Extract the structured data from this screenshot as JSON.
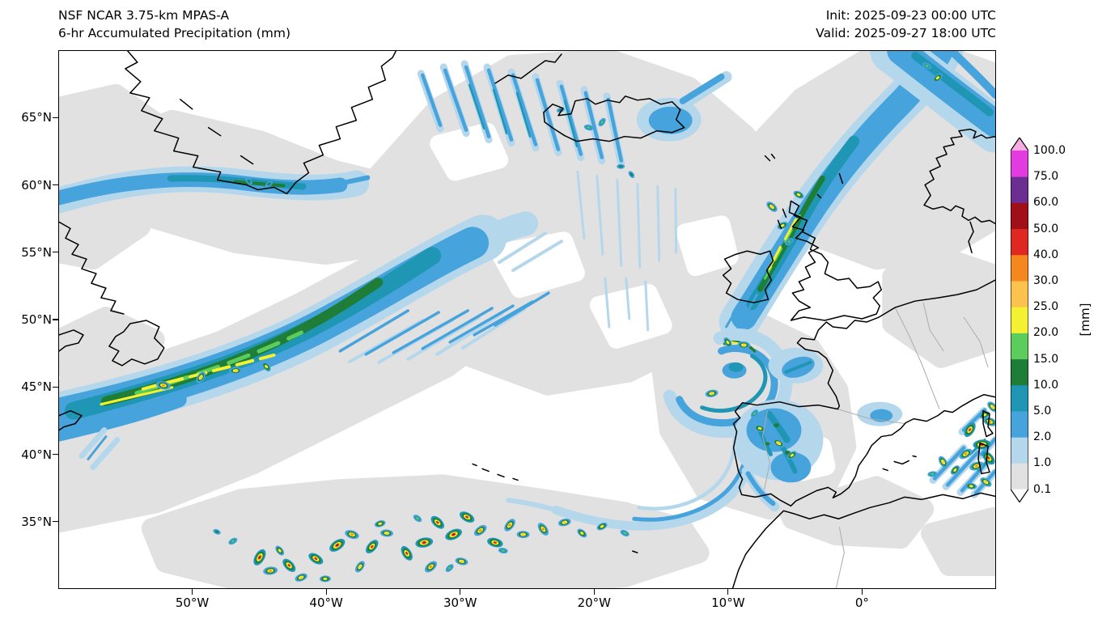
{
  "header": {
    "title_line1": "NSF NCAR 3.75-km MPAS-A",
    "title_line2": "6-hr Accumulated Precipitation (mm)",
    "init_label": "Init: 2025-09-23 00:00 UTC",
    "valid_label": "Valid: 2025-09-27 18:00 UTC"
  },
  "map": {
    "extent": {
      "lon_min": -60,
      "lon_max": 10,
      "lat_min": 30,
      "lat_max": 70
    },
    "y_tick_values": [
      65,
      60,
      55,
      50,
      45,
      40,
      35
    ],
    "y_tick_labels": [
      "65°N",
      "60°N",
      "55°N",
      "50°N",
      "45°N",
      "40°N",
      "35°N"
    ],
    "x_tick_values": [
      -50,
      -40,
      -30,
      -20,
      -10,
      0
    ],
    "x_tick_labels": [
      "50°W",
      "40°W",
      "30°W",
      "20°W",
      "10°W",
      "0°"
    ]
  },
  "colorbar": {
    "unit_label": "[mm]",
    "tick_labels": [
      "100.0",
      "75.0",
      "60.0",
      "50.0",
      "40.0",
      "30.0",
      "25.0",
      "20.0",
      "15.0",
      "10.0",
      "5.0",
      "2.0",
      "1.0",
      "0.1"
    ],
    "under_color": "#ffffff",
    "palette_mm": {
      "0.1": "#e1e1e1",
      "1.0": "#b5d7ec",
      "2.0": "#47a3dc",
      "5.0": "#1f96b4",
      "10.0": "#1e7e38",
      "15.0": "#5ccc5c",
      "20.0": "#f4f132",
      "25.0": "#fbc34d",
      "30.0": "#f5871f",
      "40.0": "#e02823",
      "50.0": "#a01016",
      "60.0": "#6b2e91",
      "75.0": "#e23bdf",
      "100.0": "#f7abe1"
    }
  },
  "precip_cells": [
    [
      -45.0,
      32.3,
      50
    ],
    [
      -44.2,
      31.3,
      30
    ],
    [
      -42.8,
      31.7,
      40
    ],
    [
      -41.9,
      30.8,
      25
    ],
    [
      -40.8,
      32.2,
      40
    ],
    [
      -39.2,
      33.2,
      50
    ],
    [
      -38.1,
      34.0,
      30
    ],
    [
      -36.6,
      33.1,
      40
    ],
    [
      -35.5,
      34.1,
      25
    ],
    [
      -34.0,
      32.6,
      40
    ],
    [
      -32.7,
      33.4,
      50
    ],
    [
      -31.7,
      34.9,
      40
    ],
    [
      -30.5,
      34.0,
      50
    ],
    [
      -29.5,
      35.3,
      40
    ],
    [
      -28.5,
      34.3,
      30
    ],
    [
      -27.4,
      33.4,
      40
    ],
    [
      -26.3,
      34.7,
      30
    ],
    [
      -25.3,
      34.0,
      25
    ],
    [
      -23.8,
      34.4,
      30
    ],
    [
      -22.2,
      34.9,
      25
    ],
    [
      -20.9,
      34.1,
      20
    ],
    [
      -19.4,
      34.6,
      20
    ],
    [
      -17.7,
      34.1,
      15
    ],
    [
      -32.2,
      31.6,
      30
    ],
    [
      -29.9,
      32.0,
      25
    ],
    [
      -37.5,
      31.6,
      25
    ],
    [
      -40.1,
      30.7,
      20
    ],
    [
      -43.5,
      32.8,
      20
    ],
    [
      -36.0,
      34.8,
      20
    ],
    [
      -33.2,
      35.2,
      15
    ],
    [
      -47.0,
      33.5,
      15
    ],
    [
      -48.2,
      34.2,
      10
    ],
    [
      -30.8,
      31.5,
      15
    ],
    [
      -26.8,
      32.8,
      15
    ],
    [
      8.1,
      41.8,
      40
    ],
    [
      9.0,
      40.7,
      50
    ],
    [
      9.5,
      39.7,
      40
    ],
    [
      8.6,
      39.1,
      30
    ],
    [
      9.3,
      37.9,
      25
    ],
    [
      7.8,
      40.0,
      30
    ],
    [
      9.6,
      42.4,
      30
    ],
    [
      7.0,
      38.8,
      20
    ],
    [
      8.2,
      37.6,
      20
    ],
    [
      6.1,
      39.4,
      25
    ],
    [
      5.3,
      38.5,
      15
    ],
    [
      9.8,
      43.5,
      25
    ],
    [
      9.2,
      42.9,
      20
    ],
    [
      -6.2,
      40.8,
      25
    ],
    [
      -5.2,
      39.9,
      20
    ],
    [
      -7.6,
      41.9,
      20
    ],
    [
      -8.0,
      43.0,
      15
    ],
    [
      -8.8,
      48.1,
      25
    ],
    [
      -10.0,
      48.3,
      20
    ],
    [
      -11.2,
      44.5,
      25
    ],
    [
      -6.7,
      58.4,
      25
    ],
    [
      -5.9,
      57.0,
      20
    ],
    [
      -4.7,
      59.3,
      20
    ],
    [
      -5.4,
      55.8,
      15
    ],
    [
      -20.4,
      64.3,
      15
    ],
    [
      -19.4,
      64.7,
      15
    ],
    [
      -18.0,
      61.4,
      10
    ],
    [
      -17.2,
      60.8,
      10
    ],
    [
      -22.5,
      65.6,
      10
    ],
    [
      -45.8,
      60.3,
      10
    ],
    [
      -44.3,
      60.1,
      10
    ],
    [
      4.9,
      68.9,
      15
    ],
    [
      5.7,
      68.0,
      20
    ],
    [
      -52.2,
      45.1,
      30
    ],
    [
      -49.4,
      45.7,
      25
    ],
    [
      -46.8,
      46.2,
      25
    ],
    [
      -44.5,
      46.5,
      20
    ]
  ]
}
